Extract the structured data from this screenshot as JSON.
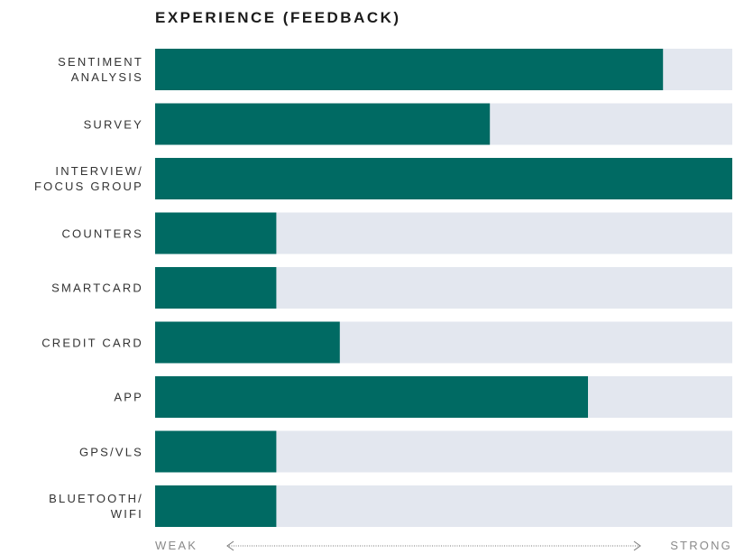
{
  "chart_data": {
    "type": "bar",
    "orientation": "horizontal",
    "title": "EXPERIENCE (FEEDBACK)",
    "categories": [
      "SENTIMENT\nANALYSIS",
      "SURVEY",
      "INTERVIEW/\nFOCUS GROUP",
      "COUNTERS",
      "SMARTCARD",
      "CREDIT CARD",
      "APP",
      "GPS/VLS",
      "BLUETOOTH/\nWIFI"
    ],
    "values": [
      88,
      58,
      100,
      21,
      21,
      32,
      75,
      21,
      21
    ],
    "color": "#006a63",
    "track_color": "#e3e7ef",
    "xlim": [
      0,
      100
    ],
    "x_label_min": "WEAK",
    "x_label_max": "STRONG"
  }
}
